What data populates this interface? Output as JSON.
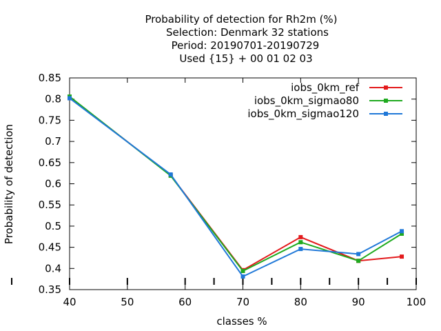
{
  "chart_data": {
    "type": "line",
    "title_lines": [
      "Probability of detection  for Rh2m (%)",
      "Selection: Denmark     32 stations",
      "Period: 20190701-20190729",
      "Used {15} + 00 01 02 03"
    ],
    "xlabel": "classes %",
    "ylabel": "Probability of detection",
    "xlim": [
      40,
      100
    ],
    "ylim": [
      0.35,
      0.85
    ],
    "xticks": [
      40,
      50,
      60,
      70,
      80,
      90,
      100
    ],
    "yticks": [
      0.35,
      0.4,
      0.45,
      0.5,
      0.55,
      0.6,
      0.65,
      0.7,
      0.75,
      0.8,
      0.85
    ],
    "xtick_labels": [
      "40",
      "50",
      "60",
      "70",
      "80",
      "90",
      "100"
    ],
    "ytick_labels": [
      "0.35",
      "0.4",
      "0.45",
      "0.5",
      "0.55",
      "0.6",
      "0.65",
      "0.7",
      "0.75",
      "0.8",
      "0.85"
    ],
    "minor_xticks": [
      65,
      75,
      85,
      95
    ],
    "grid": false,
    "legend_position": "top-right",
    "series": [
      {
        "name": "iobs_0km_ref",
        "color": "#e31a1c",
        "x": [
          40,
          57.5,
          70,
          80,
          90,
          97.5
        ],
        "y": [
          0.805,
          0.62,
          0.396,
          0.474,
          0.418,
          0.428
        ]
      },
      {
        "name": "iobs_0km_sigmao80",
        "color": "#1faa1f",
        "x": [
          40,
          57.5,
          70,
          80,
          90,
          97.5
        ],
        "y": [
          0.806,
          0.619,
          0.394,
          0.462,
          0.418,
          0.482
        ]
      },
      {
        "name": "iobs_0km_sigmao120",
        "color": "#1f78d8",
        "x": [
          40,
          57.5,
          70,
          80,
          90,
          97.5
        ],
        "y": [
          0.802,
          0.622,
          0.381,
          0.446,
          0.434,
          0.488
        ]
      }
    ]
  }
}
